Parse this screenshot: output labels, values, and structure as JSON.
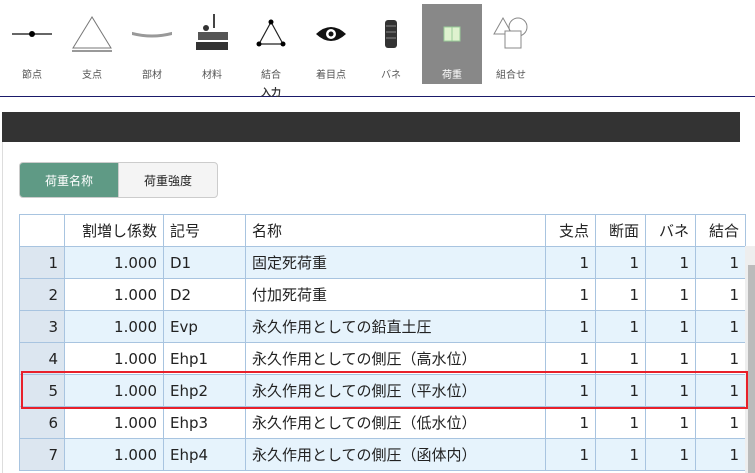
{
  "toolbar": {
    "items": [
      {
        "label": "節点",
        "icon": "node-icon"
      },
      {
        "label": "支点",
        "icon": "support-icon"
      },
      {
        "label": "部材",
        "icon": "member-icon"
      },
      {
        "label": "材料",
        "icon": "material-icon"
      },
      {
        "label": "結合",
        "icon": "joint-icon"
      },
      {
        "label": "着目点",
        "icon": "eye-icon"
      },
      {
        "label": "バネ",
        "icon": "spring-icon"
      },
      {
        "label": "荷重",
        "icon": "load-icon",
        "active": true
      },
      {
        "label": "組合せ",
        "icon": "combination-icon"
      }
    ],
    "group_label": "入力"
  },
  "tabs": {
    "load_name": "荷重名称",
    "load_intensity": "荷重強度"
  },
  "table": {
    "headers": [
      "",
      "割増し係数",
      "記号",
      "名称",
      "支点",
      "断面",
      "バネ",
      "結合"
    ],
    "rows": [
      [
        "1",
        "1.000",
        "D1",
        "固定死荷重",
        "1",
        "1",
        "1",
        "1"
      ],
      [
        "2",
        "1.000",
        "D2",
        "付加死荷重",
        "1",
        "1",
        "1",
        "1"
      ],
      [
        "3",
        "1.000",
        "Evp",
        "永久作用としての鉛直土圧",
        "1",
        "1",
        "1",
        "1"
      ],
      [
        "4",
        "1.000",
        "Ehp1",
        "永久作用としての側圧（高水位）",
        "1",
        "1",
        "1",
        "1"
      ],
      [
        "5",
        "1.000",
        "Ehp2",
        "永久作用としての側圧（平水位）",
        "1",
        "1",
        "1",
        "1"
      ],
      [
        "6",
        "1.000",
        "Ehp3",
        "永久作用としての側圧（低水位）",
        "1",
        "1",
        "1",
        "1"
      ],
      [
        "7",
        "1.000",
        "Ehp4",
        "永久作用としての側圧（函体内）",
        "1",
        "1",
        "1",
        "1"
      ]
    ],
    "highlighted_row": 5
  },
  "colors": {
    "active_tab": "#5f9a85",
    "highlight": "#e8202a",
    "row_alt": "#e6f3fc"
  }
}
